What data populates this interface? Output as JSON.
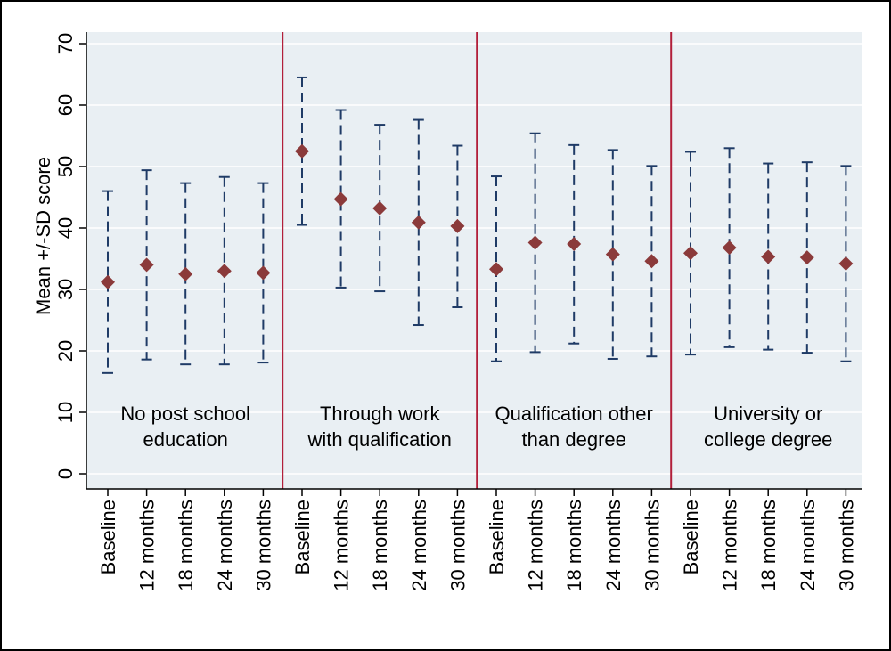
{
  "chart_data": {
    "type": "scatter",
    "ylabel": "Mean +/-SD score",
    "ylim": [
      0,
      70
    ],
    "yticks": [
      0,
      10,
      20,
      30,
      40,
      50,
      60,
      70
    ],
    "timepoints": [
      "Baseline",
      "12 months",
      "18 months",
      "24 months",
      "30 months"
    ],
    "colors": {
      "background": "#e9eff3",
      "grid": "#ffffff",
      "marker": "#8b3a3a",
      "error_bar": "#1f3b66",
      "separator": "#b21f3a"
    },
    "groups": [
      {
        "label_lines": [
          "No post school",
          "education"
        ],
        "points": [
          {
            "timepoint": "Baseline",
            "mean": 31.2,
            "lower": 16.4,
            "upper": 46.0
          },
          {
            "timepoint": "12 months",
            "mean": 34.0,
            "lower": 18.6,
            "upper": 49.4
          },
          {
            "timepoint": "18 months",
            "mean": 32.5,
            "lower": 17.8,
            "upper": 47.3
          },
          {
            "timepoint": "24 months",
            "mean": 33.0,
            "lower": 17.8,
            "upper": 48.3
          },
          {
            "timepoint": "30 months",
            "mean": 32.7,
            "lower": 18.1,
            "upper": 47.3
          }
        ]
      },
      {
        "label_lines": [
          "Through work",
          "with qualification"
        ],
        "points": [
          {
            "timepoint": "Baseline",
            "mean": 52.5,
            "lower": 40.5,
            "upper": 64.5
          },
          {
            "timepoint": "12 months",
            "mean": 44.7,
            "lower": 30.3,
            "upper": 59.2
          },
          {
            "timepoint": "18 months",
            "mean": 43.2,
            "lower": 29.7,
            "upper": 56.8
          },
          {
            "timepoint": "24 months",
            "mean": 40.9,
            "lower": 24.2,
            "upper": 57.6
          },
          {
            "timepoint": "30 months",
            "mean": 40.3,
            "lower": 27.1,
            "upper": 53.4
          }
        ]
      },
      {
        "label_lines": [
          "Qualification other",
          "than degree"
        ],
        "points": [
          {
            "timepoint": "Baseline",
            "mean": 33.3,
            "lower": 18.3,
            "upper": 48.4
          },
          {
            "timepoint": "12 months",
            "mean": 37.6,
            "lower": 19.8,
            "upper": 55.4
          },
          {
            "timepoint": "18 months",
            "mean": 37.4,
            "lower": 21.2,
            "upper": 53.5
          },
          {
            "timepoint": "24 months",
            "mean": 35.7,
            "lower": 18.7,
            "upper": 52.7
          },
          {
            "timepoint": "30 months",
            "mean": 34.6,
            "lower": 19.1,
            "upper": 50.1
          }
        ]
      },
      {
        "label_lines": [
          "University or",
          "college degree"
        ],
        "points": [
          {
            "timepoint": "Baseline",
            "mean": 35.9,
            "lower": 19.4,
            "upper": 52.4
          },
          {
            "timepoint": "12 months",
            "mean": 36.8,
            "lower": 20.6,
            "upper": 53.0
          },
          {
            "timepoint": "18 months",
            "mean": 35.3,
            "lower": 20.2,
            "upper": 50.5
          },
          {
            "timepoint": "24 months",
            "mean": 35.2,
            "lower": 19.7,
            "upper": 50.7
          },
          {
            "timepoint": "30 months",
            "mean": 34.2,
            "lower": 18.3,
            "upper": 50.1
          }
        ]
      }
    ]
  }
}
